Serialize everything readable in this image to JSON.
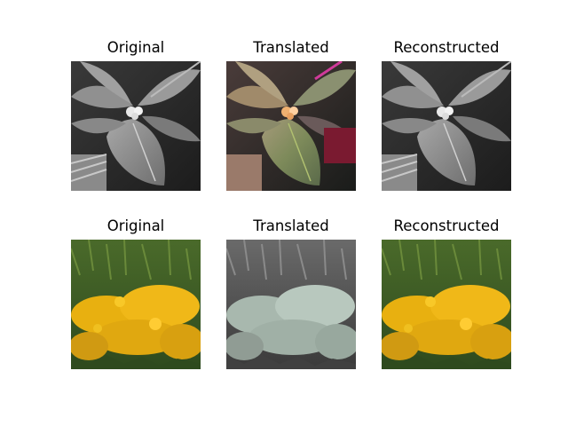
{
  "figure": {
    "rows": [
      {
        "panels": [
          {
            "title": "Original"
          },
          {
            "title": "Translated"
          },
          {
            "title": "Reconstructed"
          }
        ]
      },
      {
        "panels": [
          {
            "title": "Original"
          },
          {
            "title": "Translated"
          },
          {
            "title": "Reconstructed"
          }
        ]
      }
    ]
  }
}
